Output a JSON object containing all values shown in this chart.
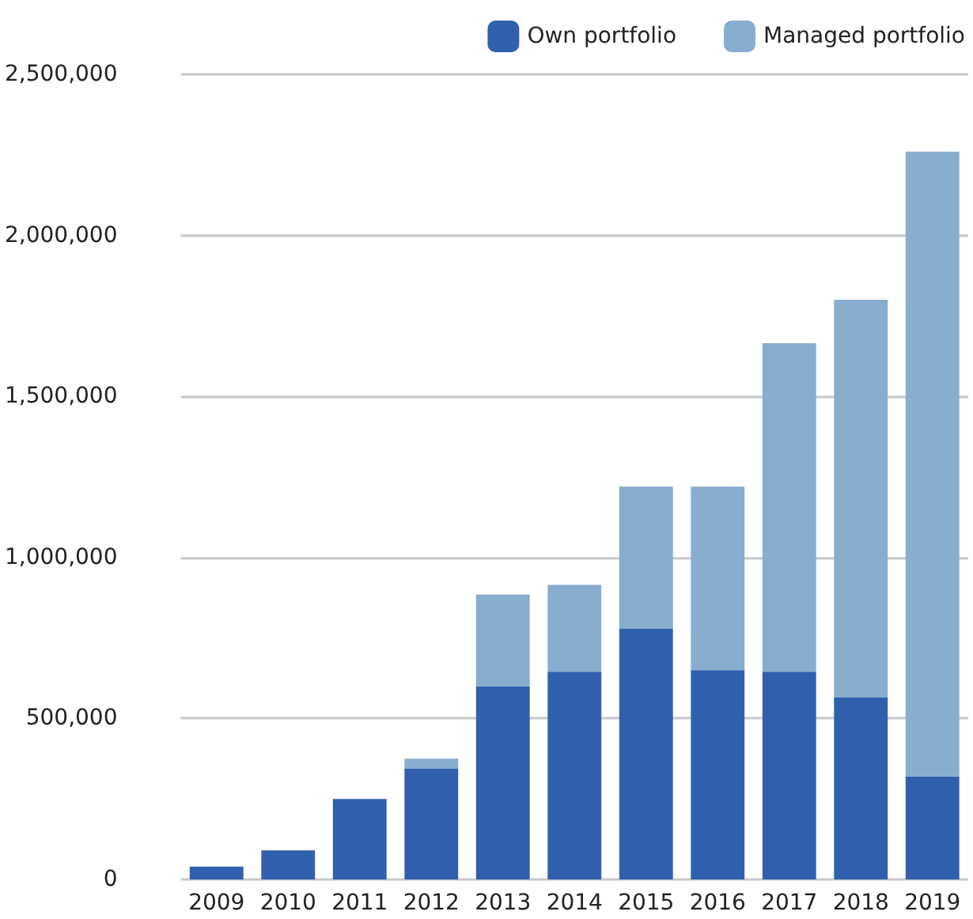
{
  "chart_data": {
    "type": "bar",
    "stacked": true,
    "categories": [
      "2009",
      "2010",
      "2011",
      "2012",
      "2013",
      "2014",
      "2015",
      "2016",
      "2017",
      "2018",
      "2019"
    ],
    "series": [
      {
        "name": "Own portfolio",
        "color": "#3060ad",
        "values": [
          40000,
          90000,
          250000,
          345000,
          600000,
          645000,
          780000,
          650000,
          645000,
          565000,
          320000
        ]
      },
      {
        "name": "Managed portfolio",
        "color": "#87adcf",
        "values": [
          0,
          0,
          0,
          30000,
          285000,
          270000,
          440000,
          570000,
          1020000,
          1235000,
          1940000
        ]
      }
    ],
    "ylim": [
      0,
      2500000
    ],
    "yticks": [
      0,
      {
        "value": 500000,
        "label": "500,000"
      },
      {
        "value": 1000000,
        "label": "1,000,000"
      },
      {
        "value": 1500000,
        "label": "1,500,000"
      },
      {
        "value": 2000000,
        "label": "2,000,000"
      },
      {
        "value": 2500000,
        "label": "2,500,000"
      }
    ],
    "grid": "y",
    "legend": "top right"
  }
}
